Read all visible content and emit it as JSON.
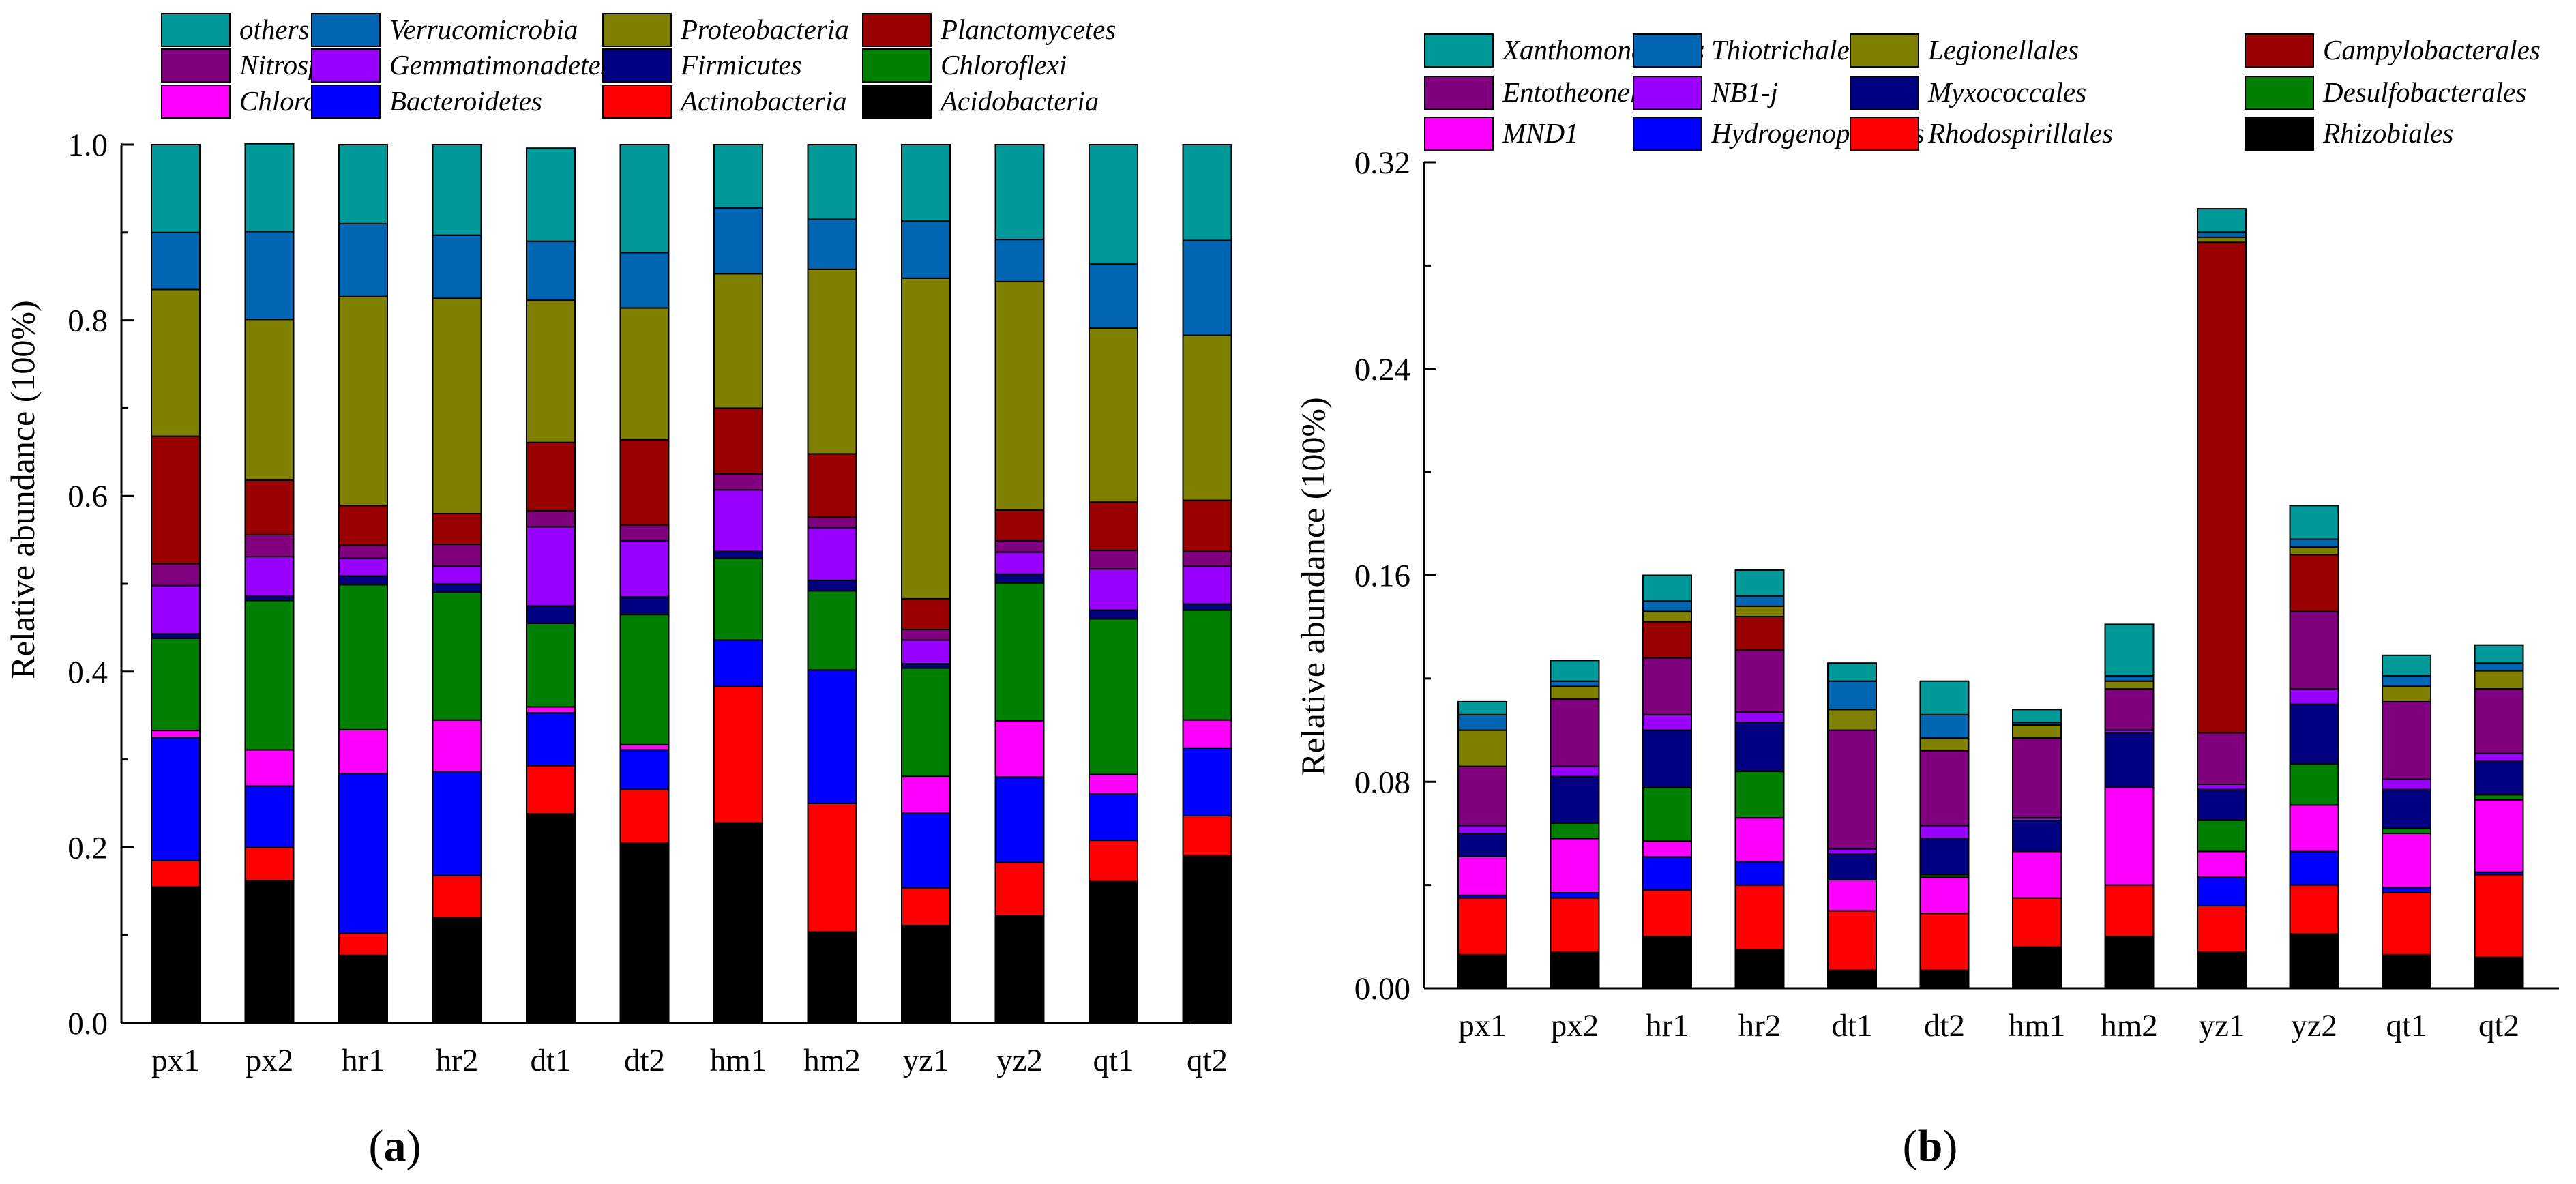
{
  "figure": {
    "panels": [
      {
        "id": "a",
        "paren_open": "(",
        "letter": "a",
        "paren_close": ")"
      },
      {
        "id": "b",
        "paren_open": "(",
        "letter": "b",
        "paren_close": ")"
      }
    ]
  },
  "chart_data": [
    {
      "id": "a",
      "type": "bar",
      "stacked": true,
      "title": "",
      "xlabel": "",
      "ylabel": "Relative abundance (100%)",
      "ylim": [
        0,
        1.0
      ],
      "yticks": [
        0.0,
        0.2,
        0.4,
        0.6,
        0.8,
        1.0
      ],
      "ytick_labels": [
        "0.0",
        "0.2",
        "0.4",
        "0.6",
        "0.8",
        "1.0"
      ],
      "categories": [
        "px1",
        "px2",
        "hr1",
        "hr2",
        "dt1",
        "dt2",
        "hm1",
        "hm2",
        "yz1",
        "yz2",
        "qt1",
        "qt2"
      ],
      "legend_placement": "top",
      "legend_rows": [
        [
          "others",
          "Verrucomicrobia",
          "Proteobacteria",
          "Planctomycetes"
        ],
        [
          "Nitrospirae",
          "Gemmatimonadetes",
          "Firmicutes",
          "Chloroflexi"
        ],
        [
          "Chlorobi",
          "Bacteroidetes",
          "Actinobacteria",
          "Acidobacteria"
        ]
      ],
      "series": [
        {
          "name": "Acidobacteria",
          "color": "#000000",
          "values": [
            0.155,
            0.162,
            0.077,
            0.12,
            0.238,
            0.205,
            0.228,
            0.104,
            0.111,
            0.122,
            0.161,
            0.19
          ]
        },
        {
          "name": "Actinobacteria",
          "color": "#ff0000",
          "values": [
            0.03,
            0.038,
            0.025,
            0.048,
            0.055,
            0.061,
            0.155,
            0.146,
            0.043,
            0.061,
            0.047,
            0.046
          ]
        },
        {
          "name": "Bacteroidetes",
          "color": "#0000ff",
          "values": [
            0.14,
            0.07,
            0.182,
            0.118,
            0.06,
            0.045,
            0.053,
            0.152,
            0.085,
            0.097,
            0.053,
            0.077
          ]
        },
        {
          "name": "Chlorobi",
          "color": "#ff00ff",
          "values": [
            0.008,
            0.041,
            0.05,
            0.059,
            0.007,
            0.006,
            0.0,
            0.0,
            0.042,
            0.064,
            0.022,
            0.032
          ]
        },
        {
          "name": "Chloroflexi",
          "color": "#008000",
          "values": [
            0.105,
            0.17,
            0.165,
            0.145,
            0.095,
            0.148,
            0.093,
            0.09,
            0.123,
            0.157,
            0.177,
            0.125
          ]
        },
        {
          "name": "Firmicutes",
          "color": "#000080",
          "values": [
            0.005,
            0.005,
            0.01,
            0.01,
            0.02,
            0.02,
            0.008,
            0.012,
            0.005,
            0.01,
            0.01,
            0.007
          ]
        },
        {
          "name": "Gemmatimonadetes",
          "color": "#9900ff",
          "values": [
            0.055,
            0.045,
            0.02,
            0.02,
            0.09,
            0.064,
            0.07,
            0.06,
            0.027,
            0.025,
            0.047,
            0.043
          ]
        },
        {
          "name": "Nitrospirae",
          "color": "#800080",
          "values": [
            0.025,
            0.025,
            0.015,
            0.025,
            0.018,
            0.018,
            0.018,
            0.012,
            0.012,
            0.013,
            0.021,
            0.017
          ]
        },
        {
          "name": "Planctomycetes",
          "color": "#990000",
          "values": [
            0.145,
            0.062,
            0.045,
            0.035,
            0.078,
            0.097,
            0.075,
            0.072,
            0.035,
            0.035,
            0.055,
            0.058
          ]
        },
        {
          "name": "Proteobacteria",
          "color": "#808000",
          "values": [
            0.167,
            0.183,
            0.238,
            0.245,
            0.162,
            0.15,
            0.153,
            0.21,
            0.365,
            0.26,
            0.198,
            0.188
          ]
        },
        {
          "name": "Verrucomicrobia",
          "color": "#0066b3",
          "values": [
            0.065,
            0.1,
            0.083,
            0.072,
            0.067,
            0.063,
            0.075,
            0.057,
            0.065,
            0.048,
            0.073,
            0.108
          ]
        },
        {
          "name": "others",
          "color": "#009999",
          "values": [
            0.1,
            0.1,
            0.09,
            0.103,
            0.106,
            0.123,
            0.072,
            0.085,
            0.087,
            0.108,
            0.136,
            0.109
          ]
        }
      ]
    },
    {
      "id": "b",
      "type": "bar",
      "stacked": true,
      "title": "",
      "xlabel": "",
      "ylabel": "Relative abundance (100%)",
      "ylim": [
        0,
        0.32
      ],
      "yticks": [
        0.0,
        0.08,
        0.16,
        0.24,
        0.32
      ],
      "ytick_labels": [
        "0.00",
        "0.08",
        "0.16",
        "0.24",
        "0.32"
      ],
      "categories": [
        "px1",
        "px2",
        "hr1",
        "hr2",
        "dt1",
        "dt2",
        "hm1",
        "hm2",
        "yz1",
        "yz2",
        "qt1",
        "qt2"
      ],
      "legend_placement": "top",
      "legend_rows": [
        [
          "Xanthomonadales",
          "Thiotrichales",
          "Legionellales",
          "Campylobacterales"
        ],
        [
          "Entotheonellales",
          "NB1-j",
          "Myxococcales",
          "Desulfobacterales"
        ],
        [
          "MND1",
          "Hydrogenophilales",
          "Rhodospirillales",
          "Rhizobiales"
        ]
      ],
      "series": [
        {
          "name": "Rhizobiales",
          "color": "#000000",
          "values": [
            0.013,
            0.014,
            0.02,
            0.015,
            0.007,
            0.007,
            0.016,
            0.02,
            0.014,
            0.021,
            0.013,
            0.012
          ]
        },
        {
          "name": "Rhodospirillales",
          "color": "#ff0000",
          "values": [
            0.022,
            0.021,
            0.018,
            0.025,
            0.023,
            0.022,
            0.019,
            0.02,
            0.018,
            0.019,
            0.024,
            0.032
          ]
        },
        {
          "name": "Hydrogenophilales",
          "color": "#0000ff",
          "values": [
            0.001,
            0.002,
            0.013,
            0.009,
            0.0,
            0.0,
            0.0,
            0.0,
            0.011,
            0.013,
            0.002,
            0.001
          ]
        },
        {
          "name": "MND1",
          "color": "#ff00ff",
          "values": [
            0.015,
            0.021,
            0.006,
            0.017,
            0.012,
            0.014,
            0.018,
            0.038,
            0.01,
            0.018,
            0.021,
            0.028
          ]
        },
        {
          "name": "Desulfobacterales",
          "color": "#008000",
          "values": [
            0.0,
            0.006,
            0.021,
            0.018,
            0.0,
            0.001,
            0.0,
            0.0,
            0.012,
            0.016,
            0.002,
            0.002
          ]
        },
        {
          "name": "Myxococcales",
          "color": "#000080",
          "values": [
            0.009,
            0.018,
            0.022,
            0.019,
            0.01,
            0.014,
            0.012,
            0.021,
            0.012,
            0.023,
            0.015,
            0.013
          ]
        },
        {
          "name": "NB1-j",
          "color": "#9900ff",
          "values": [
            0.003,
            0.004,
            0.006,
            0.004,
            0.002,
            0.005,
            0.001,
            0.001,
            0.002,
            0.006,
            0.004,
            0.003
          ]
        },
        {
          "name": "Entotheonellales",
          "color": "#800080",
          "values": [
            0.023,
            0.026,
            0.022,
            0.024,
            0.046,
            0.029,
            0.031,
            0.016,
            0.02,
            0.03,
            0.03,
            0.025
          ]
        },
        {
          "name": "Campylobacterales",
          "color": "#990000",
          "values": [
            0.0,
            0.0,
            0.014,
            0.013,
            0.0,
            0.0,
            0.0,
            0.0,
            0.19,
            0.022,
            0.0,
            0.0
          ]
        },
        {
          "name": "Legionellales",
          "color": "#808000",
          "values": [
            0.014,
            0.005,
            0.004,
            0.004,
            0.008,
            0.005,
            0.005,
            0.003,
            0.002,
            0.003,
            0.006,
            0.007
          ]
        },
        {
          "name": "Thiotrichales",
          "color": "#0066b3",
          "values": [
            0.006,
            0.002,
            0.004,
            0.004,
            0.011,
            0.009,
            0.001,
            0.002,
            0.002,
            0.003,
            0.004,
            0.003
          ]
        },
        {
          "name": "Xanthomonadales",
          "color": "#009999",
          "values": [
            0.005,
            0.008,
            0.01,
            0.01,
            0.007,
            0.013,
            0.005,
            0.02,
            0.009,
            0.013,
            0.008,
            0.007
          ]
        }
      ]
    }
  ]
}
